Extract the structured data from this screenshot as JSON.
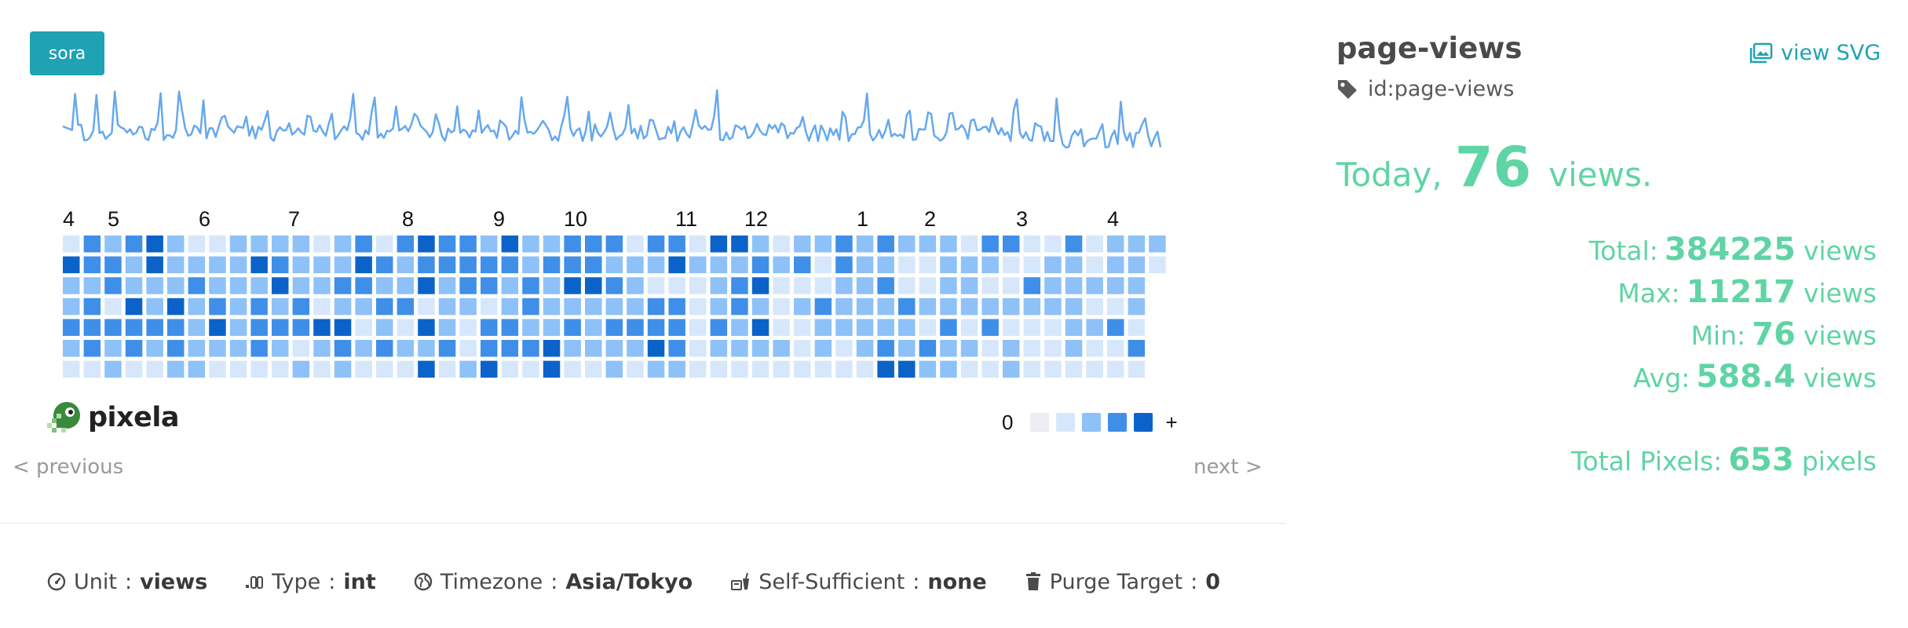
{
  "user": {
    "name": "sora"
  },
  "graph": {
    "name": "page-views",
    "id_text": "id:page-views",
    "view_svg_label": "view SVG",
    "months": [
      "4",
      "5",
      "6",
      "7",
      "8",
      "9",
      "10",
      "11",
      "12",
      "1",
      "2",
      "3",
      "4"
    ],
    "legend": {
      "min_label": "0",
      "max_label": "+"
    },
    "colors": {
      "level0": "#ebedf0",
      "level1": "#d7e7fb",
      "level2": "#8ec1f7",
      "level3": "#3f8fe9",
      "level4": "#0b63c9",
      "sparkline": "#66a8ee",
      "accent": "#1fa2b3",
      "stats": "#5fd4a4"
    }
  },
  "pager": {
    "previous": "< previous",
    "next": "next >"
  },
  "info": {
    "unit_label": "Unit",
    "unit_value": "views",
    "type_label": "Type",
    "type_value": "int",
    "timezone_label": "Timezone",
    "timezone_value": "Asia/Tokyo",
    "self_label": "Self-Sufficient",
    "self_value": "none",
    "purge_label": "Purge Target",
    "purge_value": "0",
    "separator": ":"
  },
  "logo": {
    "text": "pixela"
  },
  "today": {
    "prefix": "Today",
    "comma": ",",
    "value": "76",
    "suffix": "views."
  },
  "stats": {
    "total_label": "Total:",
    "total_value": "384225",
    "total_unit": "views",
    "max_label": "Max:",
    "max_value": "11217",
    "max_unit": "views",
    "min_label": "Min:",
    "min_value": "76",
    "min_unit": "views",
    "avg_label": "Avg:",
    "avg_value": "588.4",
    "avg_unit": "views",
    "pixels_label": "Total Pixels:",
    "pixels_value": "653",
    "pixels_unit": "pixels"
  }
}
